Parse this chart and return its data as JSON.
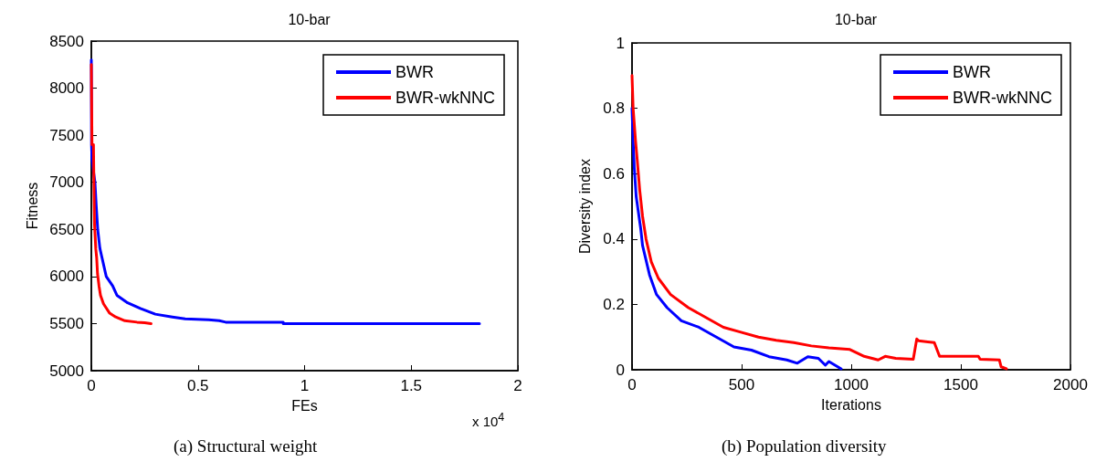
{
  "chart_data": [
    {
      "type": "line",
      "title": "10-bar",
      "xlabel": "FEs",
      "ylabel": "Fitness",
      "xlim": [
        0,
        2
      ],
      "xticks": [
        0,
        0.5,
        1,
        1.5,
        2
      ],
      "ylim": [
        5000,
        8500
      ],
      "yticks": [
        5000,
        5500,
        6000,
        6500,
        7000,
        7500,
        8000,
        8500
      ],
      "grid": false,
      "legend": "top right",
      "marker": "none",
      "line_style": "solid",
      "annotations": [
        "x 10$^{4}$",
        "(a) Structural weight"
      ],
      "series": [
        {
          "name": "BWR",
          "color": "#0000ff",
          "x": [
            0,
            0.001,
            0.003,
            0.011,
            0.017,
            0.023,
            0.03,
            0.04,
            0.05,
            0.07,
            0.1,
            0.12,
            0.17,
            0.23,
            0.3,
            0.38,
            0.44,
            0.55,
            0.6,
            0.63,
            0.9,
            0.9,
            1.82
          ],
          "values": [
            8300,
            7400,
            7250,
            7100,
            7000,
            6750,
            6500,
            6300,
            6200,
            6000,
            5900,
            5800,
            5720,
            5660,
            5600,
            5570,
            5550,
            5540,
            5530,
            5515,
            5515,
            5500,
            5500
          ]
        },
        {
          "name": "BWR-wkNNC",
          "color": "#ff0000",
          "x": [
            0,
            0.003,
            0.01,
            0.012,
            0.015,
            0.021,
            0.025,
            0.029,
            0.036,
            0.043,
            0.057,
            0.086,
            0.114,
            0.157,
            0.214,
            0.25,
            0.28
          ],
          "values": [
            8250,
            7400,
            7400,
            7000,
            6550,
            6290,
            6200,
            6030,
            5900,
            5800,
            5710,
            5610,
            5570,
            5530,
            5515,
            5510,
            5500
          ]
        }
      ]
    },
    {
      "type": "line",
      "title": "10-bar",
      "xlabel": "Iterations",
      "ylabel": "Diversity index",
      "xlim": [
        0,
        2000
      ],
      "xticks": [
        0,
        500,
        1000,
        1500,
        2000
      ],
      "ylim": [
        0,
        1
      ],
      "yticks": [
        0,
        0.2,
        0.4,
        0.6,
        0.8,
        1
      ],
      "grid": false,
      "legend": "top right",
      "marker": "none",
      "line_style": "solid",
      "annotations": [
        "(b) Population diversity"
      ],
      "series": [
        {
          "name": "BWR",
          "color": "#0000ff",
          "x": [
            0,
            5,
            10,
            19,
            40,
            48,
            80,
            112,
            160,
            225,
            305,
            385,
            465,
            545,
            625,
            706,
            754,
            802,
            850,
            882,
            898,
            954
          ],
          "values": [
            0.8,
            0.7,
            0.62,
            0.53,
            0.43,
            0.38,
            0.29,
            0.23,
            0.19,
            0.15,
            0.13,
            0.1,
            0.07,
            0.06,
            0.04,
            0.03,
            0.02,
            0.04,
            0.035,
            0.014,
            0.025,
            0.003
          ]
        },
        {
          "name": "BWR-wkNNC",
          "color": "#ff0000",
          "x": [
            0,
            5,
            16,
            24,
            35,
            48,
            64,
            88,
            120,
            176,
            257,
            337,
            417,
            497,
            577,
            658,
            738,
            818,
            898,
            994,
            1059,
            1123,
            1155,
            1203,
            1283,
            1299,
            1307,
            1379,
            1403,
            1580,
            1588,
            1676,
            1684,
            1708
          ],
          "values": [
            0.9,
            0.8,
            0.7,
            0.64,
            0.55,
            0.47,
            0.4,
            0.33,
            0.28,
            0.23,
            0.19,
            0.16,
            0.13,
            0.115,
            0.1,
            0.09,
            0.083,
            0.073,
            0.067,
            0.062,
            0.041,
            0.03,
            0.041,
            0.035,
            0.032,
            0.094,
            0.089,
            0.083,
            0.041,
            0.041,
            0.032,
            0.03,
            0.009,
            0.003
          ]
        }
      ]
    }
  ]
}
